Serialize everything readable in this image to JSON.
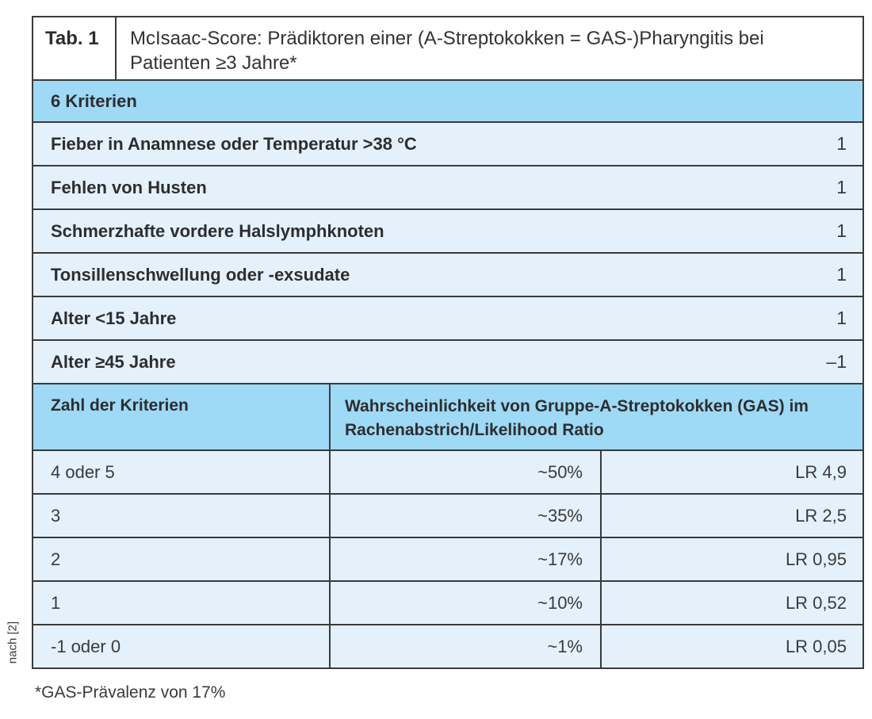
{
  "table": {
    "label": "Tab. 1",
    "title": "McIsaac-Score: Prädiktoren einer (A-Streptokokken = GAS-)Pharyngitis bei Patienten ≥3 Jahre*",
    "criteria_section_header": "6 Kriterien",
    "criteria": [
      {
        "label": "Fieber in Anamnese oder Temperatur >38 °C",
        "points": "1"
      },
      {
        "label": "Fehlen von Husten",
        "points": "1"
      },
      {
        "label": "Schmerzhafte vordere Halslymphknoten",
        "points": "1"
      },
      {
        "label": "Tonsillenschwellung oder -exsudate",
        "points": "1"
      },
      {
        "label": "Alter <15 Jahre",
        "points": "1"
      },
      {
        "label": "Alter ≥45 Jahre",
        "points": "–1"
      }
    ],
    "score_header": {
      "col1": "Zahl der Kriterien",
      "col2": "Wahrscheinlichkeit von Gruppe-A-Streptokokken (GAS) im Rachenabstrich/Likelihood Ratio"
    },
    "scores": [
      {
        "criteria_count": "4 oder 5",
        "probability": "~50%",
        "likelihood_ratio": "LR 4,9"
      },
      {
        "criteria_count": "3",
        "probability": "~35%",
        "likelihood_ratio": "LR 2,5"
      },
      {
        "criteria_count": "2",
        "probability": "~17%",
        "likelihood_ratio": "LR 0,95"
      },
      {
        "criteria_count": "1",
        "probability": "~10%",
        "likelihood_ratio": "LR 0,52"
      },
      {
        "criteria_count": "-1 oder 0",
        "probability": "~1%",
        "likelihood_ratio": "LR 0,05"
      }
    ],
    "source": "nach [2]",
    "footnote": "*GAS-Prävalenz von 17%"
  },
  "colors": {
    "header_blue": "#9ed9f5",
    "row_blue": "#e4f1fb",
    "border": "#3a3a3c"
  }
}
